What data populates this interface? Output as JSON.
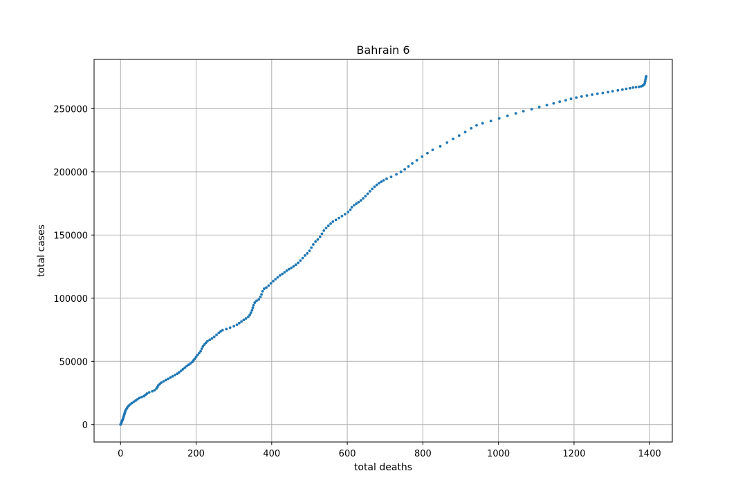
{
  "chart_data": {
    "type": "scatter",
    "title": "Bahrain 6",
    "xlabel": "total deaths",
    "ylabel": "total cases",
    "xlim": [
      -70,
      1460
    ],
    "ylim": [
      -13800,
      289000
    ],
    "grid": true,
    "x_ticks": [
      0,
      200,
      400,
      600,
      800,
      1000,
      1200,
      1400
    ],
    "y_ticks": [
      0,
      50000,
      100000,
      150000,
      200000,
      250000
    ],
    "x_tick_labels": [
      "0",
      "200",
      "400",
      "600",
      "800",
      "1000",
      "1200",
      "1400"
    ],
    "y_tick_labels": [
      "0",
      "50000",
      "100000",
      "150000",
      "200000",
      "250000"
    ],
    "series_color": "#1f77b4",
    "points": [
      [
        0,
        0
      ],
      [
        1,
        500
      ],
      [
        2,
        1200
      ],
      [
        3,
        2000
      ],
      [
        4,
        3000
      ],
      [
        5,
        3500
      ],
      [
        6,
        4200
      ],
      [
        7,
        5000
      ],
      [
        8,
        6000
      ],
      [
        9,
        7000
      ],
      [
        10,
        8000
      ],
      [
        11,
        9000
      ],
      [
        12,
        10000
      ],
      [
        13,
        11000
      ],
      [
        15,
        12000
      ],
      [
        17,
        13000
      ],
      [
        19,
        14000
      ],
      [
        22,
        15000
      ],
      [
        26,
        16000
      ],
      [
        30,
        17000
      ],
      [
        35,
        18000
      ],
      [
        40,
        19000
      ],
      [
        45,
        20000
      ],
      [
        50,
        21000
      ],
      [
        56,
        21800
      ],
      [
        62,
        22500
      ],
      [
        66,
        23500
      ],
      [
        70,
        24500
      ],
      [
        76,
        25500
      ],
      [
        84,
        26300
      ],
      [
        90,
        27200
      ],
      [
        95,
        28500
      ],
      [
        98,
        29800
      ],
      [
        100,
        31000
      ],
      [
        104,
        32200
      ],
      [
        108,
        33200
      ],
      [
        114,
        34200
      ],
      [
        120,
        35200
      ],
      [
        126,
        36200
      ],
      [
        132,
        37200
      ],
      [
        138,
        38200
      ],
      [
        144,
        39200
      ],
      [
        150,
        40200
      ],
      [
        155,
        41300
      ],
      [
        160,
        42500
      ],
      [
        165,
        43700
      ],
      [
        170,
        45000
      ],
      [
        175,
        46200
      ],
      [
        180,
        47300
      ],
      [
        185,
        48400
      ],
      [
        190,
        49500
      ],
      [
        193,
        50700
      ],
      [
        196,
        52000
      ],
      [
        200,
        53500
      ],
      [
        204,
        55000
      ],
      [
        208,
        56500
      ],
      [
        212,
        58000
      ],
      [
        215,
        60000
      ],
      [
        218,
        61800
      ],
      [
        222,
        63300
      ],
      [
        226,
        64700
      ],
      [
        230,
        66000
      ],
      [
        236,
        67000
      ],
      [
        242,
        68200
      ],
      [
        248,
        69500
      ],
      [
        254,
        71000
      ],
      [
        260,
        72500
      ],
      [
        265,
        73700
      ],
      [
        270,
        74700
      ],
      [
        280,
        75600
      ],
      [
        290,
        76700
      ],
      [
        300,
        77800
      ],
      [
        308,
        79000
      ],
      [
        314,
        80300
      ],
      [
        320,
        81500
      ],
      [
        326,
        82800
      ],
      [
        332,
        84000
      ],
      [
        338,
        85300
      ],
      [
        342,
        86800
      ],
      [
        345,
        88500
      ],
      [
        348,
        90500
      ],
      [
        350,
        92500
      ],
      [
        352,
        94500
      ],
      [
        355,
        96500
      ],
      [
        360,
        98000
      ],
      [
        366,
        99000
      ],
      [
        370,
        101000
      ],
      [
        373,
        103000
      ],
      [
        376,
        105500
      ],
      [
        380,
        107500
      ],
      [
        386,
        108500
      ],
      [
        392,
        110000
      ],
      [
        398,
        111800
      ],
      [
        404,
        113500
      ],
      [
        410,
        115000
      ],
      [
        416,
        116500
      ],
      [
        422,
        118000
      ],
      [
        428,
        119200
      ],
      [
        434,
        120500
      ],
      [
        440,
        121800
      ],
      [
        446,
        123000
      ],
      [
        452,
        124000
      ],
      [
        458,
        125200
      ],
      [
        464,
        126500
      ],
      [
        470,
        128000
      ],
      [
        476,
        129800
      ],
      [
        482,
        131800
      ],
      [
        488,
        133800
      ],
      [
        494,
        135500
      ],
      [
        500,
        137500
      ],
      [
        505,
        140000
      ],
      [
        510,
        142500
      ],
      [
        516,
        144800
      ],
      [
        522,
        146500
      ],
      [
        528,
        148500
      ],
      [
        533,
        151000
      ],
      [
        538,
        153500
      ],
      [
        544,
        155500
      ],
      [
        550,
        157300
      ],
      [
        556,
        159000
      ],
      [
        562,
        160600
      ],
      [
        570,
        162000
      ],
      [
        578,
        163500
      ],
      [
        586,
        165000
      ],
      [
        594,
        166500
      ],
      [
        602,
        168200
      ],
      [
        608,
        170000
      ],
      [
        612,
        172000
      ],
      [
        618,
        173600
      ],
      [
        624,
        174800
      ],
      [
        630,
        176000
      ],
      [
        636,
        177400
      ],
      [
        642,
        179000
      ],
      [
        648,
        180800
      ],
      [
        654,
        182700
      ],
      [
        660,
        184600
      ],
      [
        666,
        186500
      ],
      [
        672,
        188200
      ],
      [
        678,
        189700
      ],
      [
        684,
        191000
      ],
      [
        690,
        192200
      ],
      [
        696,
        193300
      ],
      [
        704,
        194500
      ],
      [
        716,
        196000
      ],
      [
        730,
        198000
      ],
      [
        742,
        200000
      ],
      [
        752,
        202000
      ],
      [
        762,
        204300
      ],
      [
        772,
        206600
      ],
      [
        784,
        209200
      ],
      [
        798,
        212000
      ],
      [
        812,
        214800
      ],
      [
        826,
        217400
      ],
      [
        846,
        220200
      ],
      [
        864,
        223200
      ],
      [
        880,
        226000
      ],
      [
        896,
        228700
      ],
      [
        912,
        231500
      ],
      [
        928,
        234500
      ],
      [
        942,
        236800
      ],
      [
        958,
        238400
      ],
      [
        980,
        240200
      ],
      [
        1002,
        242300
      ],
      [
        1024,
        244400
      ],
      [
        1046,
        246300
      ],
      [
        1066,
        248000
      ],
      [
        1088,
        249600
      ],
      [
        1108,
        251300
      ],
      [
        1128,
        252800
      ],
      [
        1146,
        254200
      ],
      [
        1162,
        255500
      ],
      [
        1178,
        256700
      ],
      [
        1192,
        257800
      ],
      [
        1206,
        258800
      ],
      [
        1220,
        259600
      ],
      [
        1234,
        260400
      ],
      [
        1248,
        261100
      ],
      [
        1262,
        261800
      ],
      [
        1276,
        262400
      ],
      [
        1290,
        263100
      ],
      [
        1302,
        263800
      ],
      [
        1316,
        264500
      ],
      [
        1328,
        265100
      ],
      [
        1338,
        265700
      ],
      [
        1348,
        266200
      ],
      [
        1356,
        266700
      ],
      [
        1364,
        267000
      ],
      [
        1372,
        267300
      ],
      [
        1378,
        267700
      ],
      [
        1382,
        268300
      ],
      [
        1385,
        269000
      ],
      [
        1387,
        270000
      ],
      [
        1388,
        271500
      ],
      [
        1389,
        273000
      ],
      [
        1390,
        274500
      ],
      [
        1391,
        275500
      ]
    ]
  }
}
